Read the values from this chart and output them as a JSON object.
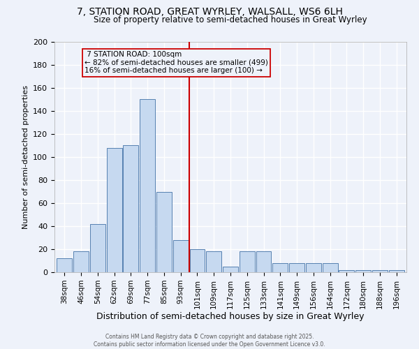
{
  "title_line1": "7, STATION ROAD, GREAT WYRLEY, WALSALL, WS6 6LH",
  "title_line2": "Size of property relative to semi-detached houses in Great Wyrley",
  "xlabel": "Distribution of semi-detached houses by size in Great Wyrley",
  "ylabel": "Number of semi-detached properties",
  "categories": [
    "38sqm",
    "46sqm",
    "54sqm",
    "62sqm",
    "69sqm",
    "77sqm",
    "85sqm",
    "93sqm",
    "101sqm",
    "109sqm",
    "117sqm",
    "125sqm",
    "133sqm",
    "141sqm",
    "149sqm",
    "156sqm",
    "164sqm",
    "172sqm",
    "180sqm",
    "188sqm",
    "196sqm"
  ],
  "values": [
    12,
    18,
    42,
    108,
    110,
    150,
    70,
    28,
    20,
    18,
    5,
    18,
    18,
    8,
    8,
    8,
    8,
    2,
    2,
    2,
    2
  ],
  "bar_color": "#c6d9f0",
  "bar_edge_color": "#5580b0",
  "vline_color": "#cc0000",
  "annotation_title": "7 STATION ROAD: 100sqm",
  "annotation_line1": "← 82% of semi-detached houses are smaller (499)",
  "annotation_line2": "16% of semi-detached houses are larger (100) →",
  "annotation_box_color": "#cc0000",
  "background_color": "#eef2fa",
  "grid_color": "#ffffff",
  "footer": "Contains HM Land Registry data © Crown copyright and database right 2025.\nContains public sector information licensed under the Open Government Licence v3.0.",
  "ylim": [
    0,
    200
  ],
  "yticks": [
    0,
    20,
    40,
    60,
    80,
    100,
    120,
    140,
    160,
    180,
    200
  ]
}
